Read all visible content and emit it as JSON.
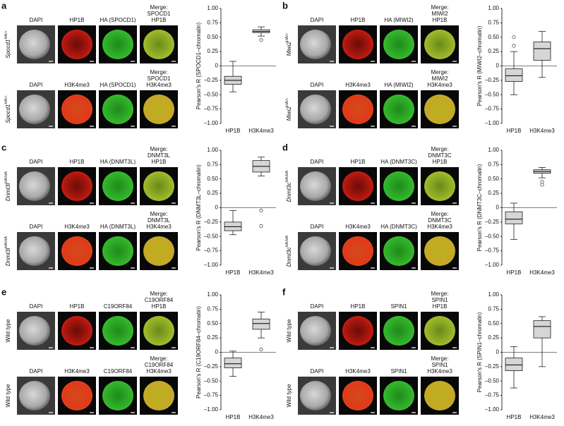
{
  "panels": [
    {
      "letter": "a",
      "rows": [
        {
          "label": {
            "gene": "Spocd1",
            "allele": "HA/+"
          },
          "headers": [
            "DAPI",
            "HP1B",
            "HA (SPOCD1)",
            [
              "Merge:",
              "SPOCD1",
              "HP1B"
            ]
          ]
        },
        {
          "label": {
            "gene": "Spocd1",
            "allele": "HA/+"
          },
          "headers": [
            "DAPI",
            "H3K4me3",
            "HA (SPOCD1)",
            [
              "Merge:",
              "SPOCD1",
              "H3K4me3"
            ]
          ]
        }
      ],
      "chart_data": {
        "type": "box",
        "y_label": "Pearson's R (SPOCD1–chromatin)",
        "categories": [
          "HP1B",
          "H3K4me3"
        ],
        "boxes": [
          {
            "whislo": -0.45,
            "q1": -0.32,
            "med": -0.25,
            "q3": -0.18,
            "whishi": 0.08,
            "fliers": []
          },
          {
            "whislo": 0.52,
            "q1": 0.58,
            "med": 0.6,
            "q3": 0.63,
            "whishi": 0.68,
            "fliers": [
              0.45
            ]
          }
        ],
        "ylim": [
          -1,
          1
        ],
        "yticks": [
          {
            "value": 1,
            "label": "1.00"
          },
          {
            "value": 0.75,
            "label": "0.75"
          },
          {
            "value": 0.5,
            "label": "0.50"
          },
          {
            "value": 0.25,
            "label": "0.25"
          },
          0,
          {
            "value": -0.25,
            "label": "–0.25"
          },
          {
            "value": -0.5,
            "label": "–0.50"
          },
          {
            "value": -0.75,
            "label": "–0.75"
          },
          {
            "value": -1,
            "label": "–1.00"
          }
        ]
      }
    },
    {
      "letter": "b",
      "rows": [
        {
          "label": {
            "gene": "Miwi2",
            "allele": "HA/+"
          },
          "headers": [
            "DAPI",
            "HP1B",
            "HA (MIWI2)",
            [
              "Merge:",
              "MIWI2",
              "HP1B"
            ]
          ]
        },
        {
          "label": {
            "gene": "Miwi2",
            "allele": "HA/+"
          },
          "headers": [
            "DAPI",
            "H3K4me3",
            "HA (MIWI2)",
            [
              "Merge:",
              "MIWI2",
              "H3K4me3"
            ]
          ]
        }
      ],
      "chart_data": {
        "type": "box",
        "y_label": "Pearson's R (MIWI2–chromatin)",
        "categories": [
          "HP1B",
          "H3K4me3"
        ],
        "boxes": [
          {
            "whislo": -0.5,
            "q1": -0.27,
            "med": -0.17,
            "q3": -0.05,
            "whishi": 0.25,
            "fliers": [
              0.5,
              0.35
            ]
          },
          {
            "whislo": -0.2,
            "q1": 0.1,
            "med": 0.3,
            "q3": 0.42,
            "whishi": 0.6,
            "fliers": []
          }
        ],
        "ylim": [
          -1,
          1
        ],
        "yticks": [
          {
            "value": 1,
            "label": "1.00"
          },
          {
            "value": 0.75,
            "label": "0.75"
          },
          {
            "value": 0.5,
            "label": "0.50"
          },
          {
            "value": 0.25,
            "label": "0.25"
          },
          0,
          {
            "value": -0.25,
            "label": "–0.25"
          },
          {
            "value": -0.5,
            "label": "–0.50"
          },
          {
            "value": -0.75,
            "label": "–0.75"
          },
          {
            "value": -1,
            "label": "–1.00"
          }
        ]
      }
    },
    {
      "letter": "c",
      "rows": [
        {
          "label": {
            "gene": "Dnmt3l",
            "allele": "HA/HA"
          },
          "headers": [
            "DAPI",
            "HP1B",
            "HA (DNMT3L)",
            [
              "Merge:",
              "DNMT3L",
              "HP1B"
            ]
          ]
        },
        {
          "label": {
            "gene": "Dnmt3l",
            "allele": "HA/HA"
          },
          "headers": [
            "DAPI",
            "H3K4me3",
            "HA (DNMT3L)",
            [
              "Merge:",
              "DNMT3L",
              "H3K4me3"
            ]
          ]
        }
      ],
      "chart_data": {
        "type": "box",
        "y_label": "Pearson's R (DNMT3L–chromatin)",
        "categories": [
          "HP1B",
          "H3K4me3"
        ],
        "boxes": [
          {
            "whislo": -0.47,
            "q1": -0.4,
            "med": -0.33,
            "q3": -0.25,
            "whishi": -0.05,
            "fliers": []
          },
          {
            "whislo": 0.55,
            "q1": 0.62,
            "med": 0.72,
            "q3": 0.82,
            "whishi": 0.88,
            "fliers": [
              -0.05,
              -0.32
            ]
          }
        ],
        "ylim": [
          -1,
          1
        ],
        "yticks": [
          {
            "value": 1,
            "label": "1.00"
          },
          {
            "value": 0.75,
            "label": "0.75"
          },
          {
            "value": 0.5,
            "label": "0.50"
          },
          {
            "value": 0.25,
            "label": "0.25"
          },
          0,
          {
            "value": -0.25,
            "label": "–0.25"
          },
          {
            "value": -0.5,
            "label": "–0.50"
          },
          {
            "value": -0.75,
            "label": "–0.75"
          },
          {
            "value": -1,
            "label": "–1.00"
          }
        ]
      }
    },
    {
      "letter": "d",
      "rows": [
        {
          "label": {
            "gene": "Dnmt3c",
            "allele": "HA/HA"
          },
          "headers": [
            "DAPI",
            "HP1B",
            "HA (DNMT3C)",
            [
              "Merge:",
              "DNMT3C",
              "HP1B"
            ]
          ]
        },
        {
          "label": {
            "gene": "Dnmt3c",
            "allele": "HA/HA"
          },
          "headers": [
            "DAPI",
            "H3K4me3",
            "HA (DNMT3C)",
            [
              "Merge:",
              "DNMT3C",
              "H3K4me3"
            ]
          ]
        }
      ],
      "chart_data": {
        "type": "box",
        "y_label": "Pearson's R (DNMT3C–chromatin)",
        "categories": [
          "HP1B",
          "H3K4me3"
        ],
        "boxes": [
          {
            "whislo": -0.55,
            "q1": -0.28,
            "med": -0.2,
            "q3": -0.07,
            "whishi": 0.08,
            "fliers": []
          },
          {
            "whislo": 0.52,
            "q1": 0.6,
            "med": 0.63,
            "q3": 0.66,
            "whishi": 0.7,
            "fliers": [
              0.4,
              0.45
            ]
          }
        ],
        "ylim": [
          -1,
          1
        ],
        "yticks": [
          {
            "value": 1,
            "label": "1.00"
          },
          {
            "value": 0.75,
            "label": "0.75"
          },
          {
            "value": 0.5,
            "label": "0.50"
          },
          {
            "value": 0.25,
            "label": "0.25"
          },
          0,
          {
            "value": -0.25,
            "label": "–0.25"
          },
          {
            "value": -0.5,
            "label": "–0.50"
          },
          {
            "value": -0.75,
            "label": "–0.75"
          },
          {
            "value": -1,
            "label": "–1.00"
          }
        ]
      }
    },
    {
      "letter": "e",
      "rows": [
        {
          "label": {
            "gene": "Wild type"
          },
          "headers": [
            "DAPI",
            "HP1B",
            "C19ORF84",
            [
              "Merge:",
              "C19ORF84",
              "HP1B"
            ]
          ]
        },
        {
          "label": {
            "gene": "Wild type"
          },
          "headers": [
            "DAPI",
            "H3K4me3",
            "C19ORF84",
            [
              "Merge:",
              "C19ORF84",
              "H3K4me3"
            ]
          ]
        }
      ],
      "chart_data": {
        "type": "box",
        "y_label": "Pearson's R (C19ORF84–chromatin)",
        "categories": [
          "HP1B",
          "H3K4me3"
        ],
        "boxes": [
          {
            "whislo": -0.42,
            "q1": -0.27,
            "med": -0.2,
            "q3": -0.1,
            "whishi": 0.02,
            "fliers": []
          },
          {
            "whislo": 0.25,
            "q1": 0.4,
            "med": 0.5,
            "q3": 0.58,
            "whishi": 0.7,
            "fliers": [
              0.05
            ]
          }
        ],
        "ylim": [
          -1,
          1
        ],
        "yticks": [
          {
            "value": 1,
            "label": "1.00"
          },
          {
            "value": 0.75,
            "label": "0.75"
          },
          {
            "value": 0.5,
            "label": "0.50"
          },
          {
            "value": 0.25,
            "label": "0.25"
          },
          0,
          {
            "value": -0.25,
            "label": "–0.25"
          },
          {
            "value": -0.5,
            "label": "–0.50"
          },
          {
            "value": -0.75,
            "label": "–0.75"
          },
          {
            "value": -1,
            "label": "–1.00"
          }
        ]
      }
    },
    {
      "letter": "f",
      "rows": [
        {
          "label": {
            "gene": "Wild type"
          },
          "headers": [
            "DAPI",
            "HP1B",
            "SPIN1",
            [
              "Merge:",
              "SPIN1",
              "HP1B"
            ]
          ]
        },
        {
          "label": {
            "gene": "Wild type"
          },
          "headers": [
            "DAPI",
            "H3K4me3",
            "SPIN1",
            [
              "Merge:",
              "SPIN1",
              "H3K4me3"
            ]
          ]
        }
      ],
      "chart_data": {
        "type": "box",
        "y_label": "Pearson's R (SPIN1–chromatin)",
        "categories": [
          "HP1B",
          "H3K4me3"
        ],
        "boxes": [
          {
            "whislo": -0.62,
            "q1": -0.32,
            "med": -0.22,
            "q3": -0.1,
            "whishi": 0.1,
            "fliers": []
          },
          {
            "whislo": -0.25,
            "q1": 0.25,
            "med": 0.45,
            "q3": 0.55,
            "whishi": 0.62,
            "fliers": []
          }
        ],
        "ylim": [
          -1,
          1
        ],
        "yticks": [
          {
            "value": 1,
            "label": "1.00"
          },
          {
            "value": 0.75,
            "label": "0.75"
          },
          {
            "value": 0.5,
            "label": "0.50"
          },
          {
            "value": 0.25,
            "label": "0.25"
          },
          0,
          {
            "value": -0.25,
            "label": "–0.25"
          },
          {
            "value": -0.5,
            "label": "–0.50"
          },
          {
            "value": -0.75,
            "label": "–0.75"
          },
          {
            "value": -1,
            "label": "–1.00"
          }
        ]
      }
    }
  ]
}
